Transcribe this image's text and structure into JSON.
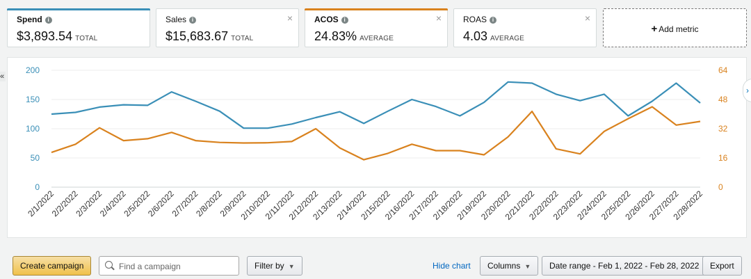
{
  "metrics": [
    {
      "title": "Spend",
      "value": "$3,893.54",
      "unit": "TOTAL",
      "color": "#3a8fb7",
      "active": true
    },
    {
      "title": "Sales",
      "value": "$15,683.67",
      "unit": "TOTAL",
      "color": "",
      "active": false
    },
    {
      "title": "ACOS",
      "value": "24.83%",
      "unit": "AVERAGE",
      "color": "#d9821e",
      "active": true
    },
    {
      "title": "ROAS",
      "value": "4.03",
      "unit": "AVERAGE",
      "color": "",
      "active": false
    }
  ],
  "add_metric": {
    "plus": "+",
    "label": "Add metric"
  },
  "chart_data": {
    "type": "line",
    "categories": [
      "2/1/2022",
      "2/2/2022",
      "2/3/2022",
      "2/4/2022",
      "2/5/2022",
      "2/6/2022",
      "2/7/2022",
      "2/8/2022",
      "2/9/2022",
      "2/10/2022",
      "2/11/2022",
      "2/12/2022",
      "2/13/2022",
      "2/14/2022",
      "2/15/2022",
      "2/16/2022",
      "2/17/2022",
      "2/18/2022",
      "2/19/2022",
      "2/20/2022",
      "2/21/2022",
      "2/22/2022",
      "2/23/2022",
      "2/24/2022",
      "2/25/2022",
      "2/26/2022",
      "2/27/2022",
      "2/28/2022"
    ],
    "series": [
      {
        "axis": "left",
        "color": "#3a8fb7",
        "values": [
          125,
          128,
          137,
          141,
          140,
          163,
          147,
          130,
          101,
          101,
          108,
          119,
          129,
          109,
          130,
          150,
          138,
          122,
          145,
          180,
          178,
          159,
          148,
          159,
          122,
          147,
          178,
          144
        ]
      },
      {
        "axis": "right",
        "color": "#d9821e",
        "values": [
          19,
          23.5,
          32.5,
          25.5,
          26.5,
          30,
          25.5,
          24.5,
          24.2,
          24.3,
          25,
          32,
          21.5,
          15,
          18.5,
          23.5,
          20,
          20,
          17.7,
          27.5,
          41.5,
          21,
          18.2,
          30.5,
          37.5,
          44,
          34,
          36
        ]
      }
    ],
    "left_axis": {
      "ylim": [
        0,
        200
      ],
      "ticks": [
        0,
        50,
        100,
        150,
        200
      ],
      "color": "#3a8fb7"
    },
    "right_axis": {
      "ylim": [
        0,
        64
      ],
      "ticks": [
        0,
        16,
        32,
        48,
        64
      ],
      "color": "#d9821e"
    },
    "grid": true
  },
  "toolbar": {
    "create_campaign": "Create campaign",
    "search_placeholder": "Find a campaign",
    "filter_by": "Filter by",
    "hide_chart": "Hide chart",
    "columns": "Columns",
    "date_range": "Date range - Feb 1, 2022 - Feb 28, 2022",
    "export": "Export"
  },
  "icons": {
    "info": "info-icon",
    "close": "close-icon",
    "collapse_left": "double-chevron-left-icon",
    "collapse_right": "chevron-right-icon"
  }
}
